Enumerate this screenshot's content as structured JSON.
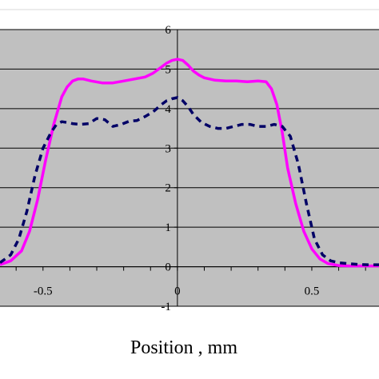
{
  "chart_data": {
    "type": "line",
    "xlabel": "Position , mm",
    "ylabel": "",
    "xlim": [
      -0.66,
      0.75
    ],
    "ylim": [
      -1,
      6
    ],
    "x_ticks": [
      -0.5,
      0,
      0.5
    ],
    "x_tick_labels": [
      "-0.5",
      "0",
      "0.5"
    ],
    "y_ticks": [
      -1,
      0,
      1,
      2,
      3,
      4,
      5,
      6
    ],
    "y_tick_labels": [
      "-1",
      "0",
      "1",
      "2",
      "3",
      "4",
      "5",
      "6"
    ],
    "grid": true,
    "legend": "none",
    "plot_background": "#c0c0c0",
    "series": [
      {
        "color": "#ff00ff",
        "style": "solid",
        "x": [
          -0.66,
          -0.62,
          -0.58,
          -0.55,
          -0.52,
          -0.49,
          -0.46,
          -0.43,
          -0.41,
          -0.39,
          -0.37,
          -0.35,
          -0.32,
          -0.28,
          -0.24,
          -0.2,
          -0.16,
          -0.12,
          -0.09,
          -0.06,
          -0.04,
          -0.02,
          0.0,
          0.02,
          0.04,
          0.06,
          0.08,
          0.1,
          0.14,
          0.18,
          0.22,
          0.26,
          0.3,
          0.33,
          0.35,
          0.37,
          0.39,
          0.41,
          0.44,
          0.47,
          0.5,
          0.53,
          0.56,
          0.6,
          0.64,
          0.68,
          0.72,
          0.75
        ],
        "y": [
          0.05,
          0.15,
          0.4,
          0.9,
          1.7,
          2.7,
          3.6,
          4.3,
          4.55,
          4.7,
          4.75,
          4.75,
          4.7,
          4.65,
          4.65,
          4.7,
          4.75,
          4.8,
          4.9,
          5.05,
          5.15,
          5.22,
          5.25,
          5.22,
          5.1,
          4.95,
          4.85,
          4.78,
          4.72,
          4.7,
          4.7,
          4.68,
          4.7,
          4.68,
          4.5,
          4.1,
          3.4,
          2.5,
          1.6,
          0.9,
          0.45,
          0.2,
          0.08,
          0.03,
          0.02,
          0.02,
          0.02,
          0.02
        ]
      },
      {
        "color": "#000066",
        "style": "dashed",
        "x": [
          -0.66,
          -0.62,
          -0.59,
          -0.56,
          -0.53,
          -0.5,
          -0.47,
          -0.45,
          -0.43,
          -0.41,
          -0.39,
          -0.36,
          -0.33,
          -0.3,
          -0.27,
          -0.24,
          -0.21,
          -0.18,
          -0.15,
          -0.12,
          -0.09,
          -0.06,
          -0.04,
          -0.02,
          0.0,
          0.02,
          0.04,
          0.06,
          0.09,
          0.12,
          0.15,
          0.18,
          0.21,
          0.24,
          0.27,
          0.3,
          0.33,
          0.36,
          0.39,
          0.42,
          0.45,
          0.48,
          0.51,
          0.54,
          0.57,
          0.6,
          0.63,
          0.67,
          0.71,
          0.75
        ],
        "y": [
          0.1,
          0.3,
          0.7,
          1.4,
          2.3,
          3.0,
          3.4,
          3.6,
          3.67,
          3.65,
          3.62,
          3.6,
          3.62,
          3.75,
          3.72,
          3.55,
          3.6,
          3.68,
          3.7,
          3.8,
          3.92,
          4.1,
          4.2,
          4.25,
          4.28,
          4.2,
          4.05,
          3.85,
          3.65,
          3.55,
          3.5,
          3.5,
          3.55,
          3.6,
          3.6,
          3.55,
          3.55,
          3.6,
          3.55,
          3.3,
          2.6,
          1.6,
          0.7,
          0.3,
          0.15,
          0.1,
          0.08,
          0.06,
          0.05,
          0.05
        ]
      }
    ]
  }
}
